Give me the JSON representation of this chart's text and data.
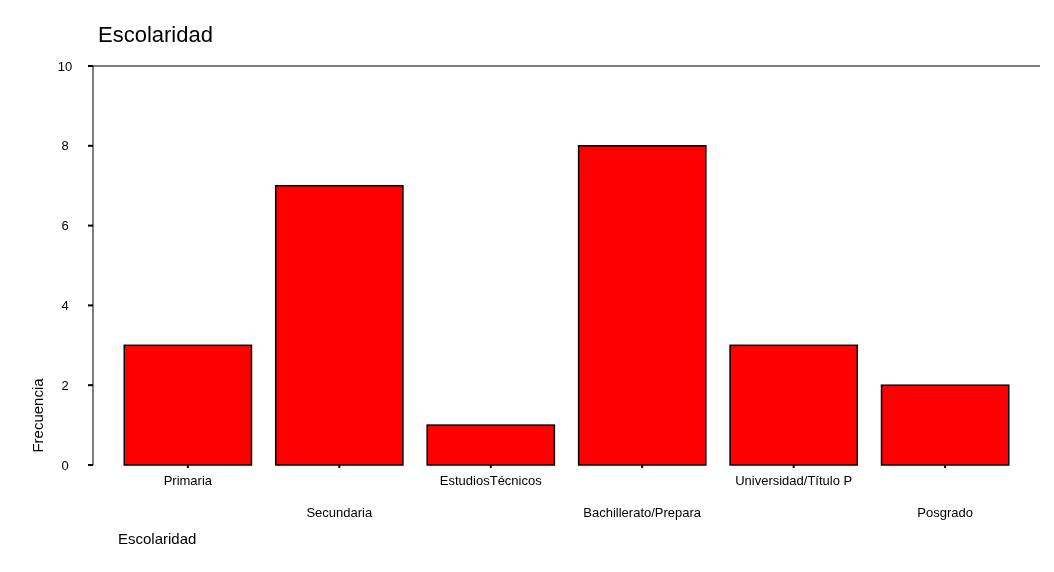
{
  "chart_data": {
    "type": "bar",
    "title": "Escolaridad",
    "xlabel": "Escolaridad",
    "ylabel": "Frecuencia",
    "categories": [
      "Primaria",
      "Secundaria",
      "EstudiosTécnicos",
      "Bachillerato/Prepara",
      "Universidad/Título P",
      "Posgrado"
    ],
    "values": [
      3,
      7,
      1,
      8,
      3,
      2
    ],
    "color": "#ff0000",
    "ylim": [
      0,
      10
    ],
    "yticks": [
      0,
      2,
      4,
      6,
      8,
      10
    ],
    "grid": false
  }
}
